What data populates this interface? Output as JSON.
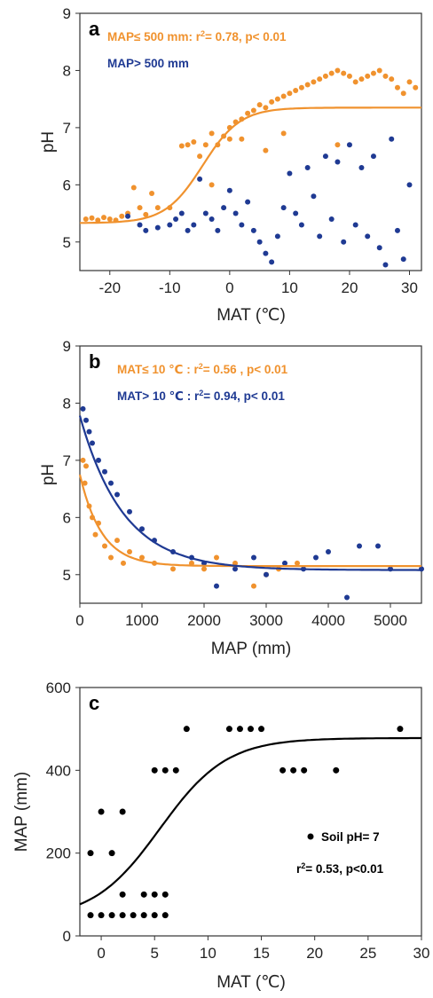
{
  "chart_data": [
    {
      "panel": "a",
      "type": "scatter",
      "xlabel": "MAT (℃)",
      "ylabel": "pH",
      "xlim": [
        -25,
        32
      ],
      "ylim": [
        4.5,
        9
      ],
      "xticks": [
        -20,
        -10,
        0,
        10,
        20,
        30
      ],
      "yticks": [
        5,
        6,
        7,
        8,
        9
      ],
      "colors": {
        "low": "#f0922e",
        "high": "#1f3a93"
      },
      "legend": {
        "orange": "MAP≤  500 mm: r",
        "orange_sup": "2",
        "orange_tail": "= 0.78, p< 0.01",
        "blue": "MAP> 500 mm"
      },
      "fit": {
        "series": "orange",
        "type": "sigmoid",
        "min": 5.33,
        "max": 7.35,
        "x0": -4.5,
        "k": 0.32
      },
      "series": [
        {
          "color": "orange",
          "points": [
            [
              -24,
              5.4
            ],
            [
              -23,
              5.42
            ],
            [
              -22,
              5.38
            ],
            [
              -21,
              5.43
            ],
            [
              -20,
              5.4
            ],
            [
              -19,
              5.38
            ],
            [
              -18,
              5.45
            ],
            [
              -17,
              5.5
            ],
            [
              -16,
              5.95
            ],
            [
              -15,
              5.6
            ],
            [
              -14,
              5.48
            ],
            [
              -13,
              5.85
            ],
            [
              -12,
              5.6
            ],
            [
              -10,
              5.6
            ],
            [
              -8,
              6.68
            ],
            [
              -7,
              6.7
            ],
            [
              -6,
              6.75
            ],
            [
              -5,
              6.5
            ],
            [
              -4,
              6.7
            ],
            [
              -3,
              6.9
            ],
            [
              -3,
              6.0
            ],
            [
              -2,
              6.7
            ],
            [
              -1,
              6.85
            ],
            [
              0,
              6.8
            ],
            [
              0,
              7.0
            ],
            [
              1,
              7.1
            ],
            [
              2,
              7.15
            ],
            [
              2,
              6.8
            ],
            [
              3,
              7.25
            ],
            [
              4,
              7.3
            ],
            [
              5,
              7.4
            ],
            [
              6,
              7.35
            ],
            [
              6,
              6.6
            ],
            [
              7,
              7.45
            ],
            [
              8,
              7.5
            ],
            [
              9,
              7.55
            ],
            [
              9,
              6.9
            ],
            [
              10,
              7.6
            ],
            [
              11,
              7.65
            ],
            [
              12,
              7.7
            ],
            [
              13,
              7.75
            ],
            [
              14,
              7.8
            ],
            [
              15,
              7.85
            ],
            [
              16,
              7.9
            ],
            [
              17,
              7.95
            ],
            [
              18,
              8.0
            ],
            [
              18,
              6.7
            ],
            [
              19,
              7.95
            ],
            [
              20,
              7.9
            ],
            [
              21,
              7.8
            ],
            [
              22,
              7.85
            ],
            [
              23,
              7.9
            ],
            [
              24,
              7.95
            ],
            [
              25,
              8.0
            ],
            [
              26,
              7.9
            ],
            [
              27,
              7.85
            ],
            [
              28,
              7.7
            ],
            [
              29,
              7.6
            ],
            [
              30,
              7.8
            ],
            [
              31,
              7.7
            ]
          ]
        },
        {
          "color": "blue",
          "points": [
            [
              -17,
              5.45
            ],
            [
              -15,
              5.3
            ],
            [
              -14,
              5.2
            ],
            [
              -12,
              5.25
            ],
            [
              -10,
              5.3
            ],
            [
              -9,
              5.4
            ],
            [
              -8,
              5.5
            ],
            [
              -7,
              5.2
            ],
            [
              -6,
              5.3
            ],
            [
              -5,
              6.1
            ],
            [
              -4,
              5.5
            ],
            [
              -3,
              5.4
            ],
            [
              -2,
              5.2
            ],
            [
              -1,
              5.6
            ],
            [
              0,
              5.9
            ],
            [
              1,
              5.5
            ],
            [
              2,
              5.3
            ],
            [
              3,
              5.7
            ],
            [
              4,
              5.2
            ],
            [
              5,
              5.0
            ],
            [
              6,
              4.8
            ],
            [
              7,
              4.65
            ],
            [
              8,
              5.1
            ],
            [
              9,
              5.6
            ],
            [
              10,
              6.2
            ],
            [
              11,
              5.5
            ],
            [
              12,
              5.3
            ],
            [
              13,
              6.3
            ],
            [
              14,
              5.8
            ],
            [
              15,
              5.1
            ],
            [
              16,
              6.5
            ],
            [
              17,
              5.4
            ],
            [
              18,
              6.4
            ],
            [
              19,
              5.0
            ],
            [
              20,
              6.7
            ],
            [
              21,
              5.3
            ],
            [
              22,
              6.3
            ],
            [
              23,
              5.1
            ],
            [
              24,
              6.5
            ],
            [
              25,
              4.9
            ],
            [
              26,
              4.6
            ],
            [
              27,
              6.8
            ],
            [
              28,
              5.2
            ],
            [
              29,
              4.7
            ],
            [
              30,
              6.0
            ]
          ]
        }
      ]
    },
    {
      "panel": "b",
      "type": "scatter",
      "xlabel": "MAP (mm)",
      "ylabel": "pH",
      "xlim": [
        0,
        5500
      ],
      "ylim": [
        4.5,
        9
      ],
      "xticks": [
        0,
        1000,
        2000,
        3000,
        4000,
        5000
      ],
      "yticks": [
        5,
        6,
        7,
        8,
        9
      ],
      "colors": {
        "low": "#f0922e",
        "high": "#1f3a93"
      },
      "legend": {
        "orange": "MAT≤  10 ℃ : r",
        "orange_sup": "2",
        "orange_tail": "= 0.56 , p< 0.01",
        "blue": "MAT> 10 ℃ : r",
        "blue_sup": "2",
        "blue_tail": "= 0.94, p< 0.01"
      },
      "fits": [
        {
          "series": "orange",
          "type": "exp",
          "base": 5.15,
          "amp": 1.6,
          "scale": 350
        },
        {
          "series": "blue",
          "type": "exp",
          "base": 5.08,
          "amp": 2.7,
          "scale": 700
        }
      ],
      "series": [
        {
          "color": "orange",
          "points": [
            [
              50,
              7.0
            ],
            [
              80,
              6.6
            ],
            [
              100,
              6.9
            ],
            [
              150,
              6.2
            ],
            [
              200,
              6.0
            ],
            [
              250,
              5.7
            ],
            [
              300,
              5.9
            ],
            [
              400,
              5.5
            ],
            [
              500,
              5.3
            ],
            [
              600,
              5.6
            ],
            [
              700,
              5.2
            ],
            [
              800,
              5.4
            ],
            [
              1000,
              5.3
            ],
            [
              1200,
              5.2
            ],
            [
              1500,
              5.1
            ],
            [
              1800,
              5.2
            ],
            [
              2000,
              5.1
            ],
            [
              2200,
              5.3
            ],
            [
              2500,
              5.2
            ],
            [
              2800,
              4.8
            ],
            [
              3000,
              5.0
            ],
            [
              3200,
              5.1
            ],
            [
              3500,
              5.2
            ]
          ]
        },
        {
          "color": "blue",
          "points": [
            [
              50,
              7.9
            ],
            [
              100,
              7.7
            ],
            [
              150,
              7.5
            ],
            [
              200,
              7.3
            ],
            [
              300,
              7.0
            ],
            [
              400,
              6.8
            ],
            [
              500,
              6.6
            ],
            [
              600,
              6.4
            ],
            [
              800,
              6.1
            ],
            [
              1000,
              5.8
            ],
            [
              1200,
              5.6
            ],
            [
              1500,
              5.4
            ],
            [
              1800,
              5.3
            ],
            [
              2000,
              5.2
            ],
            [
              2200,
              4.8
            ],
            [
              2500,
              5.1
            ],
            [
              2800,
              5.3
            ],
            [
              3000,
              5.0
            ],
            [
              3300,
              5.2
            ],
            [
              3600,
              5.1
            ],
            [
              3800,
              5.3
            ],
            [
              4000,
              5.4
            ],
            [
              4300,
              4.6
            ],
            [
              4500,
              5.5
            ],
            [
              4800,
              5.5
            ],
            [
              5000,
              5.1
            ],
            [
              5500,
              5.1
            ]
          ]
        }
      ]
    },
    {
      "panel": "c",
      "type": "scatter",
      "xlabel": "MAT (℃)",
      "ylabel": "MAP (mm)",
      "xlim": [
        -2,
        30
      ],
      "ylim": [
        0,
        600
      ],
      "xticks": [
        0,
        5,
        10,
        15,
        20,
        25,
        30
      ],
      "yticks": [
        0,
        200,
        400,
        600
      ],
      "legend": {
        "label": "Soil pH= 7",
        "stat": "r",
        "stat_sup": "2",
        "stat_tail": "= 0.53, p<0.01"
      },
      "fit": {
        "type": "sigmoid",
        "min": 40,
        "max": 478,
        "x0": 5.5,
        "k": 0.32
      },
      "series": [
        {
          "name": "Soil pH= 7",
          "color": "black",
          "points": [
            [
              -1,
              50
            ],
            [
              0,
              50
            ],
            [
              1,
              50
            ],
            [
              2,
              50
            ],
            [
              3,
              50
            ],
            [
              4,
              50
            ],
            [
              5,
              50
            ],
            [
              6,
              50
            ],
            [
              2,
              100
            ],
            [
              4,
              100
            ],
            [
              5,
              100
            ],
            [
              6,
              100
            ],
            [
              -1,
              200
            ],
            [
              1,
              200
            ],
            [
              0,
              300
            ],
            [
              2,
              300
            ],
            [
              5,
              400
            ],
            [
              6,
              400
            ],
            [
              7,
              400
            ],
            [
              8,
              500
            ],
            [
              12,
              500
            ],
            [
              13,
              500
            ],
            [
              14,
              500
            ],
            [
              15,
              500
            ],
            [
              17,
              400
            ],
            [
              18,
              400
            ],
            [
              19,
              400
            ],
            [
              22,
              400
            ],
            [
              28,
              500
            ]
          ]
        }
      ]
    }
  ]
}
